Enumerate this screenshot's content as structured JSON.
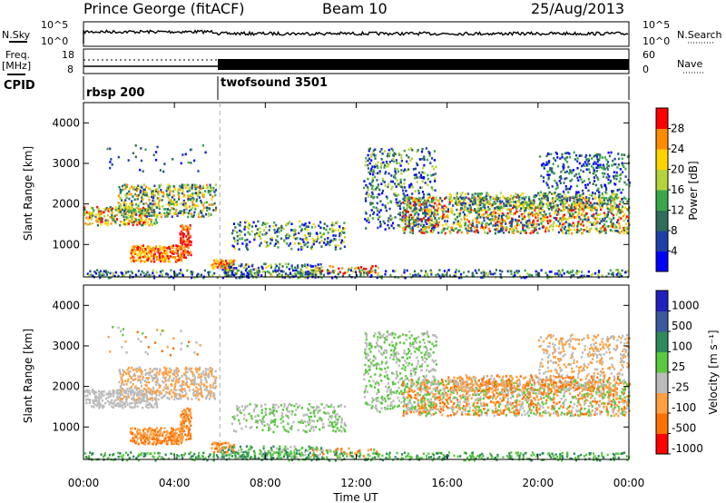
{
  "header": {
    "station": "Prince George (fitACF)",
    "beam": "Beam 10",
    "date": "25/Aug/2013"
  },
  "strip": {
    "nsky_label": "N.Sky",
    "nsearch_label": "N.Search",
    "freq_label": "Freq.",
    "freq_unit": "[MHz]",
    "nave_label": "Nave",
    "cpid_label": "CPID",
    "noise_ticks_left": [
      "10^5",
      "10^0"
    ],
    "noise_ticks_right": [
      "10^5",
      "10^0"
    ],
    "freq_ticks": [
      "18",
      "8"
    ],
    "nave_ticks": [
      "60",
      "0"
    ],
    "cpid_segments": [
      "rbsp 200",
      "twofsound 3501"
    ]
  },
  "colors": {
    "power_scale": [
      "#0000ff",
      "#1f3fa8",
      "#2e6e5a",
      "#3aa84a",
      "#b5d33a",
      "#ffd400",
      "#ff8c00",
      "#ff0000"
    ],
    "velocity_scale": [
      "#2020c0",
      "#3a5aa0",
      "#2e8a5a",
      "#5ac840",
      "#bbbbbb",
      "#ffa040",
      "#ff7000",
      "#ff0000"
    ],
    "axis": "#000000"
  },
  "chart_data": [
    {
      "type": "heatmap",
      "title": "",
      "xlabel": "Time UT",
      "ylabel": "Slant Range [km]",
      "x_ticks": [
        "00:00",
        "04:00",
        "08:00",
        "12:00",
        "16:00",
        "20:00",
        "00:00"
      ],
      "y_ticks": [
        "1000",
        "2000",
        "3000",
        "4000"
      ],
      "xlim_hours": [
        0,
        24
      ],
      "ylim_km": [
        200,
        4500
      ],
      "colorbar": {
        "label": "Power [dB]",
        "ticks": [
          "4",
          "8",
          "12",
          "16",
          "20",
          "24",
          "28"
        ],
        "range": [
          0,
          30
        ]
      }
    },
    {
      "type": "heatmap",
      "title": "",
      "xlabel": "Time UT",
      "ylabel": "Slant Range [km]",
      "x_ticks": [
        "00:00",
        "04:00",
        "08:00",
        "12:00",
        "16:00",
        "20:00",
        "00:00"
      ],
      "y_ticks": [
        "1000",
        "2000",
        "3000",
        "4000"
      ],
      "xlim_hours": [
        0,
        24
      ],
      "ylim_km": [
        200,
        4500
      ],
      "colorbar": {
        "label": "Velocity [m s⁻¹]",
        "ticks": [
          "1000",
          "500",
          "100",
          "25",
          "-25",
          "-100",
          "-500",
          "-1000"
        ],
        "range": [
          -1000,
          1000
        ]
      }
    }
  ]
}
